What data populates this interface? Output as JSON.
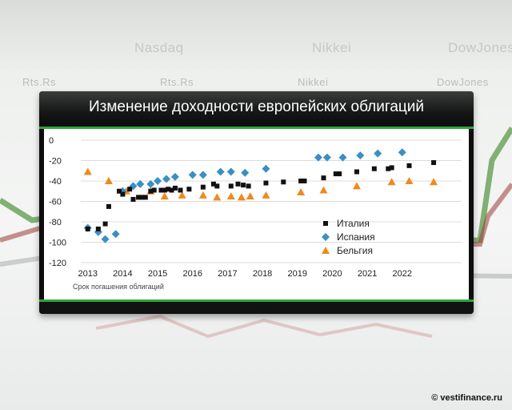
{
  "background": {
    "tickers": [
      "Nasdaq",
      "Nikkei",
      "DowJones",
      "Rts.Rs",
      "Rts.Rs",
      "Nikkei",
      "DowJones"
    ]
  },
  "credit": "© vestifinance.ru",
  "colors": {
    "title_bar": "#111312",
    "accent": "#2fa53a",
    "italy": "#111111",
    "spain": "#3a8fc4",
    "belgium": "#f0891d"
  },
  "chart_data": {
    "type": "scatter",
    "title": "Изменение доходности европейских облигаций",
    "xlabel": "Срок погашения облигаций",
    "ylabel": "",
    "xlim": [
      2012.8,
      2023.7
    ],
    "ylim": [
      -120,
      0
    ],
    "xticks": [
      2013,
      2014,
      2015,
      2016,
      2017,
      2018,
      2019,
      2020,
      2021,
      2022
    ],
    "yticks": [
      0,
      -20,
      -40,
      -60,
      -80,
      -100,
      -120
    ],
    "grid": true,
    "legend_position": "right",
    "series": [
      {
        "name": "Италия",
        "marker": "square",
        "color": "#111111",
        "points": [
          [
            2013.0,
            -87
          ],
          [
            2013.3,
            -87
          ],
          [
            2013.5,
            -82
          ],
          [
            2013.6,
            -65
          ],
          [
            2013.9,
            -50
          ],
          [
            2014.0,
            -53
          ],
          [
            2014.2,
            -48
          ],
          [
            2014.3,
            -58
          ],
          [
            2014.45,
            -56
          ],
          [
            2014.55,
            -56
          ],
          [
            2014.65,
            -56
          ],
          [
            2014.8,
            -50
          ],
          [
            2014.9,
            -49
          ],
          [
            2015.1,
            -49
          ],
          [
            2015.2,
            -49
          ],
          [
            2015.3,
            -48
          ],
          [
            2015.4,
            -49
          ],
          [
            2015.5,
            -47
          ],
          [
            2015.65,
            -49
          ],
          [
            2015.9,
            -48
          ],
          [
            2016.3,
            -46
          ],
          [
            2016.6,
            -43
          ],
          [
            2016.7,
            -45
          ],
          [
            2017.1,
            -45
          ],
          [
            2017.3,
            -43
          ],
          [
            2017.45,
            -44
          ],
          [
            2017.6,
            -45
          ],
          [
            2018.1,
            -42
          ],
          [
            2018.6,
            -41
          ],
          [
            2019.1,
            -40
          ],
          [
            2019.2,
            -40
          ],
          [
            2019.75,
            -37
          ],
          [
            2020.1,
            -33
          ],
          [
            2020.2,
            -33
          ],
          [
            2020.7,
            -31
          ],
          [
            2021.2,
            -28
          ],
          [
            2021.6,
            -28
          ],
          [
            2021.7,
            -27
          ],
          [
            2022.2,
            -25
          ],
          [
            2022.9,
            -22
          ]
        ]
      },
      {
        "name": "Испания",
        "marker": "diamond",
        "color": "#3a8fc4",
        "points": [
          [
            2013.0,
            -86
          ],
          [
            2013.3,
            -90
          ],
          [
            2013.5,
            -97
          ],
          [
            2013.8,
            -92
          ],
          [
            2014.0,
            -50
          ],
          [
            2014.3,
            -45
          ],
          [
            2014.5,
            -43
          ],
          [
            2014.8,
            -43
          ],
          [
            2015.0,
            -40
          ],
          [
            2015.25,
            -38
          ],
          [
            2015.5,
            -36
          ],
          [
            2016.0,
            -34
          ],
          [
            2016.3,
            -34
          ],
          [
            2016.8,
            -31
          ],
          [
            2017.1,
            -31
          ],
          [
            2017.5,
            -32
          ],
          [
            2018.1,
            -28
          ],
          [
            2019.6,
            -17
          ],
          [
            2019.85,
            -17
          ],
          [
            2020.3,
            -17
          ],
          [
            2020.8,
            -15
          ],
          [
            2021.3,
            -13
          ],
          [
            2022.0,
            -12
          ]
        ]
      },
      {
        "name": "Бельгия",
        "marker": "triangle",
        "color": "#f0891d",
        "points": [
          [
            2013.0,
            -31
          ],
          [
            2013.6,
            -40
          ],
          [
            2014.1,
            -50
          ],
          [
            2014.8,
            -50
          ],
          [
            2015.2,
            -55
          ],
          [
            2015.7,
            -54
          ],
          [
            2016.3,
            -54
          ],
          [
            2016.7,
            -56
          ],
          [
            2017.1,
            -55
          ],
          [
            2017.4,
            -56
          ],
          [
            2017.65,
            -55
          ],
          [
            2018.1,
            -54
          ],
          [
            2019.1,
            -51
          ],
          [
            2019.75,
            -49
          ],
          [
            2020.7,
            -45
          ],
          [
            2021.7,
            -41
          ],
          [
            2022.2,
            -40
          ],
          [
            2022.9,
            -41
          ]
        ]
      }
    ]
  }
}
